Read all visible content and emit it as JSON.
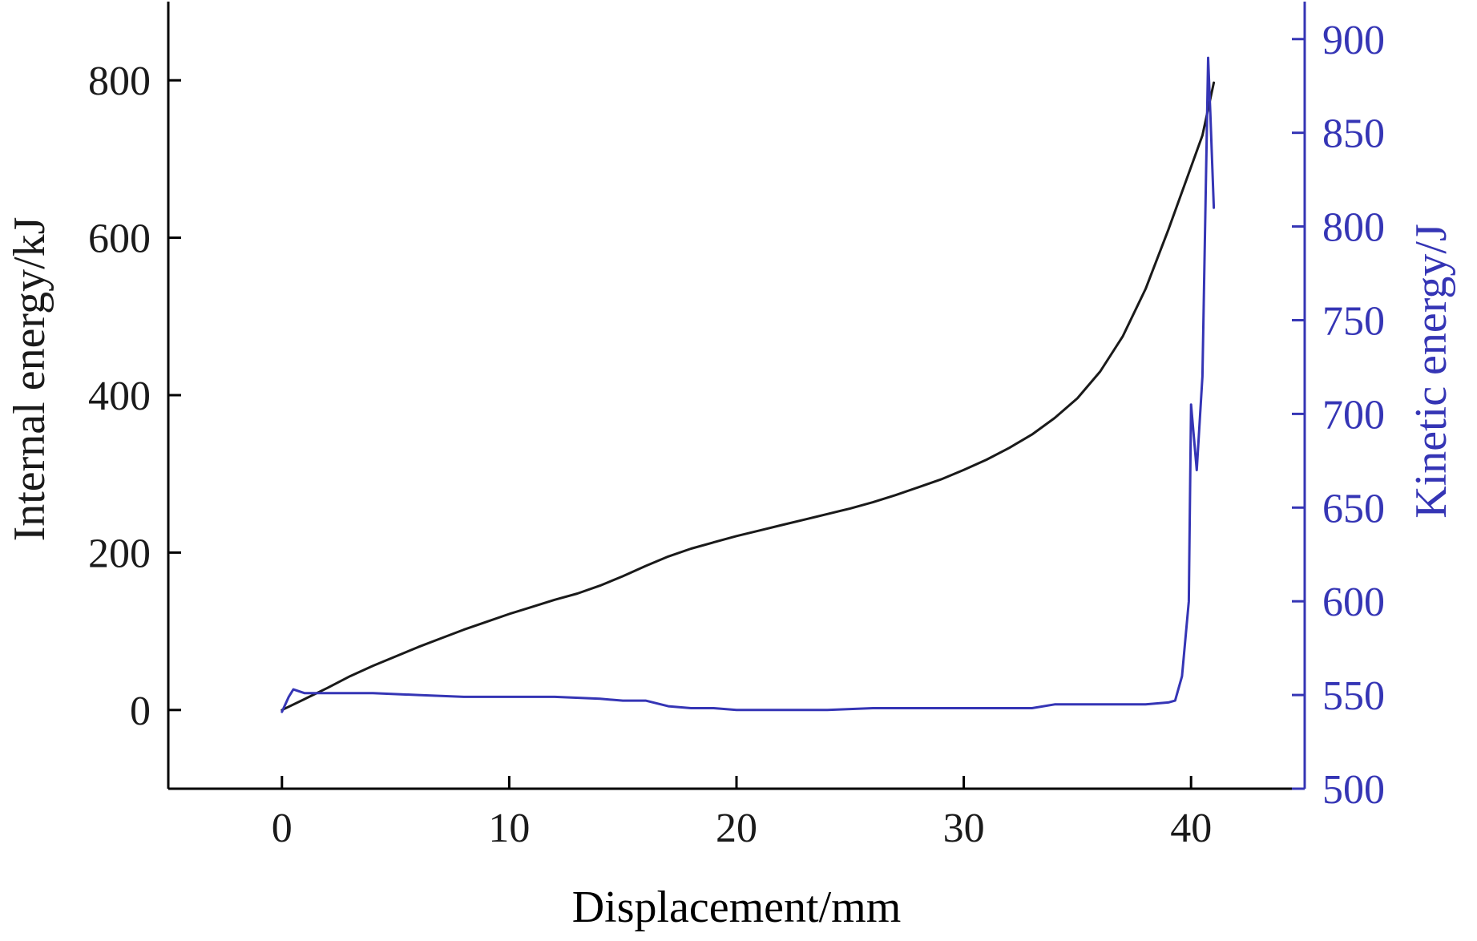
{
  "chart_data": {
    "type": "line",
    "xlabel": "Displacement/mm",
    "ylabel_left": "Internal energy/kJ",
    "ylabel_right": "Kinetic energy/J",
    "xlim": [
      -5,
      45
    ],
    "ylim_left": [
      -100,
      900
    ],
    "ylim_right": [
      500,
      920
    ],
    "x_ticks": [
      0,
      10,
      20,
      30,
      40
    ],
    "y_ticks_left": [
      0,
      200,
      400,
      600,
      800
    ],
    "y_ticks_right": [
      500,
      550,
      600,
      650,
      700,
      750,
      800,
      850,
      900
    ],
    "grid": false,
    "colors": {
      "internal": "#1a1a1a",
      "kinetic": "#3535b5"
    },
    "series": [
      {
        "axis": "left",
        "x": [
          0,
          1,
          2,
          3,
          4,
          5,
          6,
          7,
          8,
          9,
          10,
          11,
          12,
          13,
          14,
          15,
          16,
          17,
          18,
          19,
          20,
          21,
          22,
          23,
          24,
          25,
          26,
          27,
          28,
          29,
          30,
          31,
          32,
          33,
          34,
          35,
          36,
          37,
          38,
          39,
          39.5,
          40,
          40.5,
          41
        ],
        "y": [
          0,
          14,
          28,
          43,
          56,
          68,
          80,
          91,
          102,
          112,
          122,
          131,
          140,
          148,
          158,
          170,
          183,
          195,
          205,
          213,
          221,
          228,
          235,
          242,
          249,
          256,
          264,
          273,
          283,
          293,
          305,
          318,
          333,
          350,
          371,
          396,
          430,
          475,
          535,
          610,
          650,
          690,
          730,
          797
        ]
      },
      {
        "axis": "right",
        "x": [
          0,
          0.3,
          0.5,
          1,
          2,
          3,
          4,
          6,
          8,
          10,
          12,
          14,
          15,
          16,
          17,
          18,
          19,
          20,
          22,
          24,
          26,
          28,
          30,
          32,
          33,
          34,
          36,
          38,
          39,
          39.3,
          39.6,
          39.9,
          40.0,
          40.25,
          40.5,
          40.75,
          40.85,
          41
        ],
        "y": [
          541,
          549,
          553,
          551,
          551,
          551,
          551,
          550,
          549,
          549,
          549,
          548,
          547,
          547,
          544,
          543,
          543,
          542,
          542,
          542,
          543,
          543,
          543,
          543,
          543,
          545,
          545,
          545,
          546,
          547,
          560,
          600,
          705,
          670,
          720,
          890,
          860,
          810
        ]
      }
    ]
  }
}
